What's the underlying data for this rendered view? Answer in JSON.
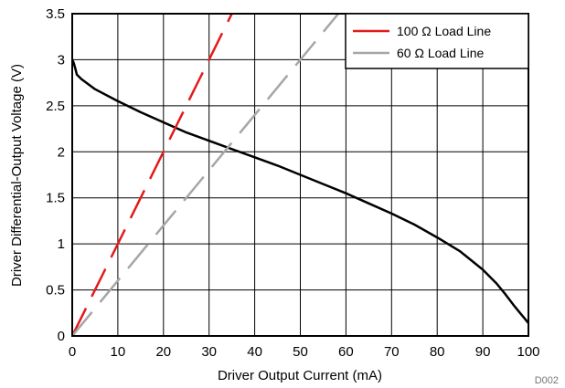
{
  "chart_data": {
    "type": "line",
    "xlabel": "Driver Output Current (mA)",
    "ylabel": "Driver Differential-Output Voltage (V)",
    "xlim": [
      0,
      100
    ],
    "ylim": [
      0,
      3.5
    ],
    "xticks": [
      "0",
      "10",
      "20",
      "30",
      "40",
      "50",
      "60",
      "70",
      "80",
      "90",
      "100"
    ],
    "yticks": [
      "0",
      "0.5",
      "1",
      "1.5",
      "2",
      "2.5",
      "3",
      "3.5"
    ],
    "grid": true,
    "legend_position": "top-right",
    "figure_id": "D002",
    "series": [
      {
        "name": "",
        "color": "#000000",
        "style": "solid",
        "x": [
          0,
          0.3,
          0.7,
          1,
          2,
          5,
          10,
          15,
          20,
          25,
          30,
          35,
          40,
          45,
          50,
          55,
          60,
          65,
          70,
          75,
          80,
          85,
          90,
          93,
          95,
          97,
          98,
          99,
          100
        ],
        "y": [
          3.0,
          2.97,
          2.9,
          2.84,
          2.79,
          2.68,
          2.55,
          2.43,
          2.32,
          2.21,
          2.12,
          2.03,
          1.94,
          1.85,
          1.75,
          1.65,
          1.55,
          1.44,
          1.33,
          1.21,
          1.07,
          0.92,
          0.72,
          0.57,
          0.45,
          0.32,
          0.26,
          0.2,
          0.14
        ]
      },
      {
        "name": "100 Ω Load Line",
        "color": "#e31a1c",
        "style": "dashed",
        "x": [
          0,
          35
        ],
        "y": [
          0,
          3.5
        ]
      },
      {
        "name": "60 Ω Load Line",
        "color": "#a6a6a6",
        "style": "dashed",
        "x": [
          0,
          58.33
        ],
        "y": [
          0,
          3.5
        ]
      }
    ]
  }
}
